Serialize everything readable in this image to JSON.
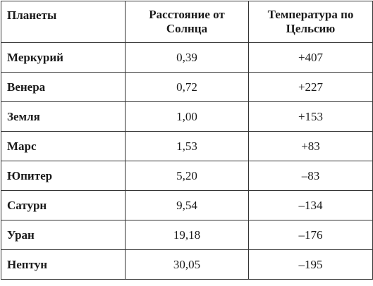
{
  "table": {
    "header": [
      "Планеты",
      "Расстояние от Солнца",
      "Температура по Цельсию"
    ],
    "rows": [
      [
        "Меркурий",
        "0,39",
        "+407"
      ],
      [
        "Венера",
        "0,72",
        "+227"
      ],
      [
        "Земля",
        "1,00",
        "+153"
      ],
      [
        "Марс",
        "1,53",
        "+83"
      ],
      [
        "Юпитер",
        "5,20",
        "–83"
      ],
      [
        "Сатурн",
        "9,54",
        "–134"
      ],
      [
        "Уран",
        "19,18",
        "–176"
      ],
      [
        "Нептун",
        "30,05",
        "–195"
      ]
    ]
  }
}
